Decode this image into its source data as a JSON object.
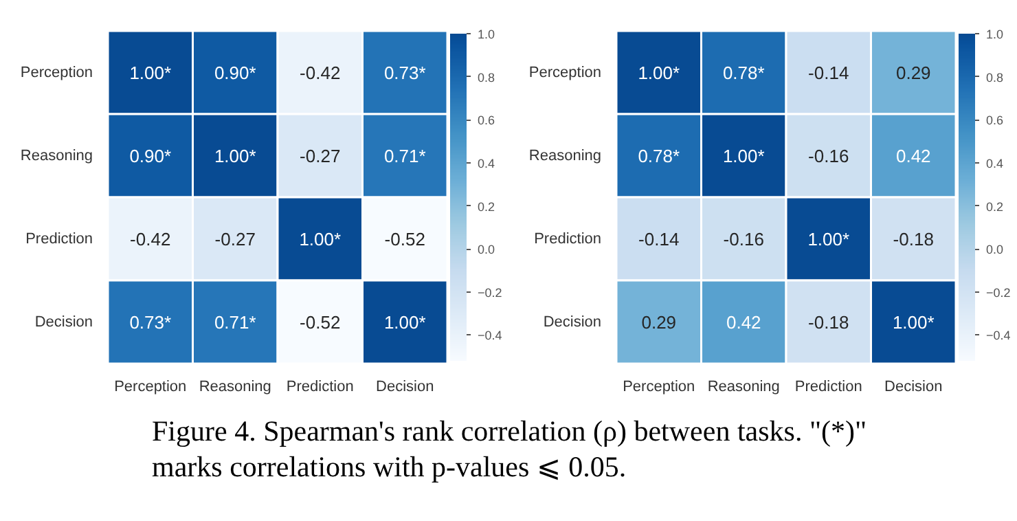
{
  "chart_data": [
    {
      "type": "heatmap",
      "categories": [
        "Perception",
        "Reasoning",
        "Prediction",
        "Decision"
      ],
      "y_categories": [
        "Perception",
        "Reasoning",
        "Prediction",
        "Decision"
      ],
      "cells": [
        [
          1.0,
          0.9,
          -0.42,
          0.73
        ],
        [
          0.9,
          1.0,
          -0.27,
          0.71
        ],
        [
          -0.42,
          -0.27,
          1.0,
          -0.52
        ],
        [
          0.73,
          0.71,
          -0.52,
          1.0
        ]
      ],
      "cell_labels": [
        [
          "1.00*",
          "0.90*",
          "-0.42",
          "0.73*"
        ],
        [
          "0.90*",
          "1.00*",
          "-0.27",
          "0.71*"
        ],
        [
          "-0.42",
          "-0.27",
          "1.00*",
          "-0.52"
        ],
        [
          "0.73*",
          "0.71*",
          "-0.52",
          "1.00*"
        ]
      ],
      "clim": [
        -0.52,
        1.0
      ],
      "cticks": [
        {
          "value": -0.4,
          "label": "−0.4"
        },
        {
          "value": -0.2,
          "label": "−0.2"
        },
        {
          "value": 0.0,
          "label": "0.0"
        },
        {
          "value": 0.2,
          "label": "0.2"
        },
        {
          "value": 0.4,
          "label": "0.4"
        },
        {
          "value": 0.6,
          "label": "0.6"
        },
        {
          "value": 0.8,
          "label": "0.8"
        },
        {
          "value": 1.0,
          "label": "1.0"
        }
      ]
    },
    {
      "type": "heatmap",
      "categories": [
        "Perception",
        "Reasoning",
        "Prediction",
        "Decision"
      ],
      "y_categories": [
        "Perception",
        "Reasoning",
        "Prediction",
        "Decision"
      ],
      "cells": [
        [
          1.0,
          0.78,
          -0.14,
          0.29
        ],
        [
          0.78,
          1.0,
          -0.16,
          0.42
        ],
        [
          -0.14,
          -0.16,
          1.0,
          -0.18
        ],
        [
          0.29,
          0.42,
          -0.18,
          1.0
        ]
      ],
      "cell_labels": [
        [
          "1.00*",
          "0.78*",
          "-0.14",
          "0.29"
        ],
        [
          "0.78*",
          "1.00*",
          "-0.16",
          "0.42"
        ],
        [
          "-0.14",
          "-0.16",
          "1.00*",
          "-0.18"
        ],
        [
          "0.29",
          "0.42",
          "-0.18",
          "1.00*"
        ]
      ],
      "clim": [
        -0.52,
        1.0
      ],
      "cticks": [
        {
          "value": -0.4,
          "label": "−0.4"
        },
        {
          "value": -0.2,
          "label": "−0.2"
        },
        {
          "value": 0.0,
          "label": "0.0"
        },
        {
          "value": 0.2,
          "label": "0.2"
        },
        {
          "value": 0.4,
          "label": "0.4"
        },
        {
          "value": 0.6,
          "label": "0.6"
        },
        {
          "value": 0.8,
          "label": "0.8"
        },
        {
          "value": 1.0,
          "label": "1.0"
        }
      ],
      "annotations": [
        "Figure 4.  Spearman's rank correlation (ρ) between tasks. \"(*)\"",
        "marks correlations with p-values ⩽ 0.05."
      ]
    }
  ]
}
